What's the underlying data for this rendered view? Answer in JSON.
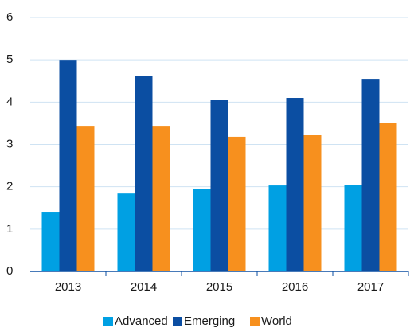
{
  "chart_data": {
    "type": "bar",
    "categories": [
      "2013",
      "2014",
      "2015",
      "2016",
      "2017"
    ],
    "series": [
      {
        "name": "Advanced",
        "color": "#00a0e3",
        "values": [
          1.41,
          1.84,
          1.95,
          2.03,
          2.05
        ]
      },
      {
        "name": "Emerging",
        "color": "#0b4ea2",
        "values": [
          5.0,
          4.62,
          4.06,
          4.1,
          4.55
        ]
      },
      {
        "name": "World",
        "color": "#f7901e",
        "values": [
          3.44,
          3.44,
          3.18,
          3.23,
          3.51
        ]
      }
    ],
    "ylim": [
      0,
      6
    ],
    "yticks": [
      0,
      1,
      2,
      3,
      4,
      5,
      6
    ],
    "grid": true,
    "legend": "bottom"
  }
}
